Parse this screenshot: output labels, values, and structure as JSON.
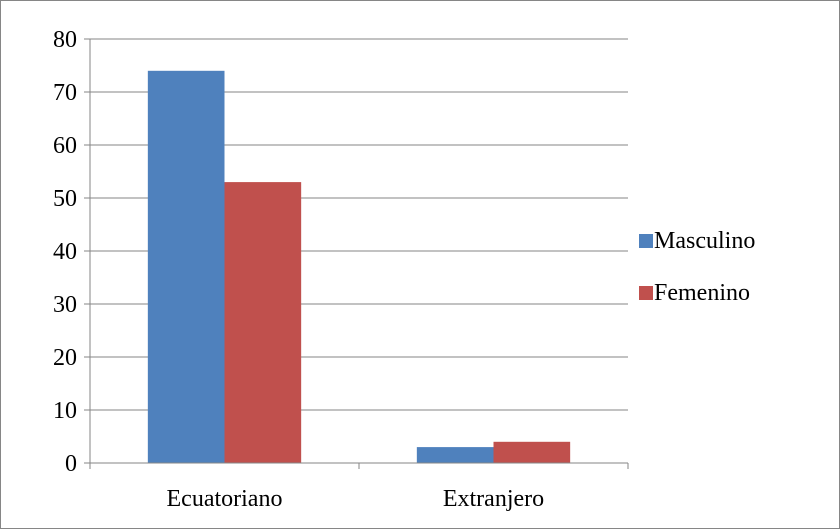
{
  "chart_data": {
    "type": "bar",
    "title": "",
    "xlabel": "",
    "ylabel": "",
    "categories": [
      "Ecuatoriano",
      "Extranjero"
    ],
    "series": [
      {
        "name": "Masculino",
        "values": [
          74,
          3
        ],
        "color": "#4F81BD"
      },
      {
        "name": "Femenino",
        "values": [
          53,
          4
        ],
        "color": "#C0504D"
      }
    ],
    "ylim": [
      0,
      80
    ],
    "yticks": [
      "0",
      "10",
      "20",
      "30",
      "40",
      "50",
      "60",
      "70",
      "80"
    ],
    "grid": true,
    "legend_position": "right"
  }
}
